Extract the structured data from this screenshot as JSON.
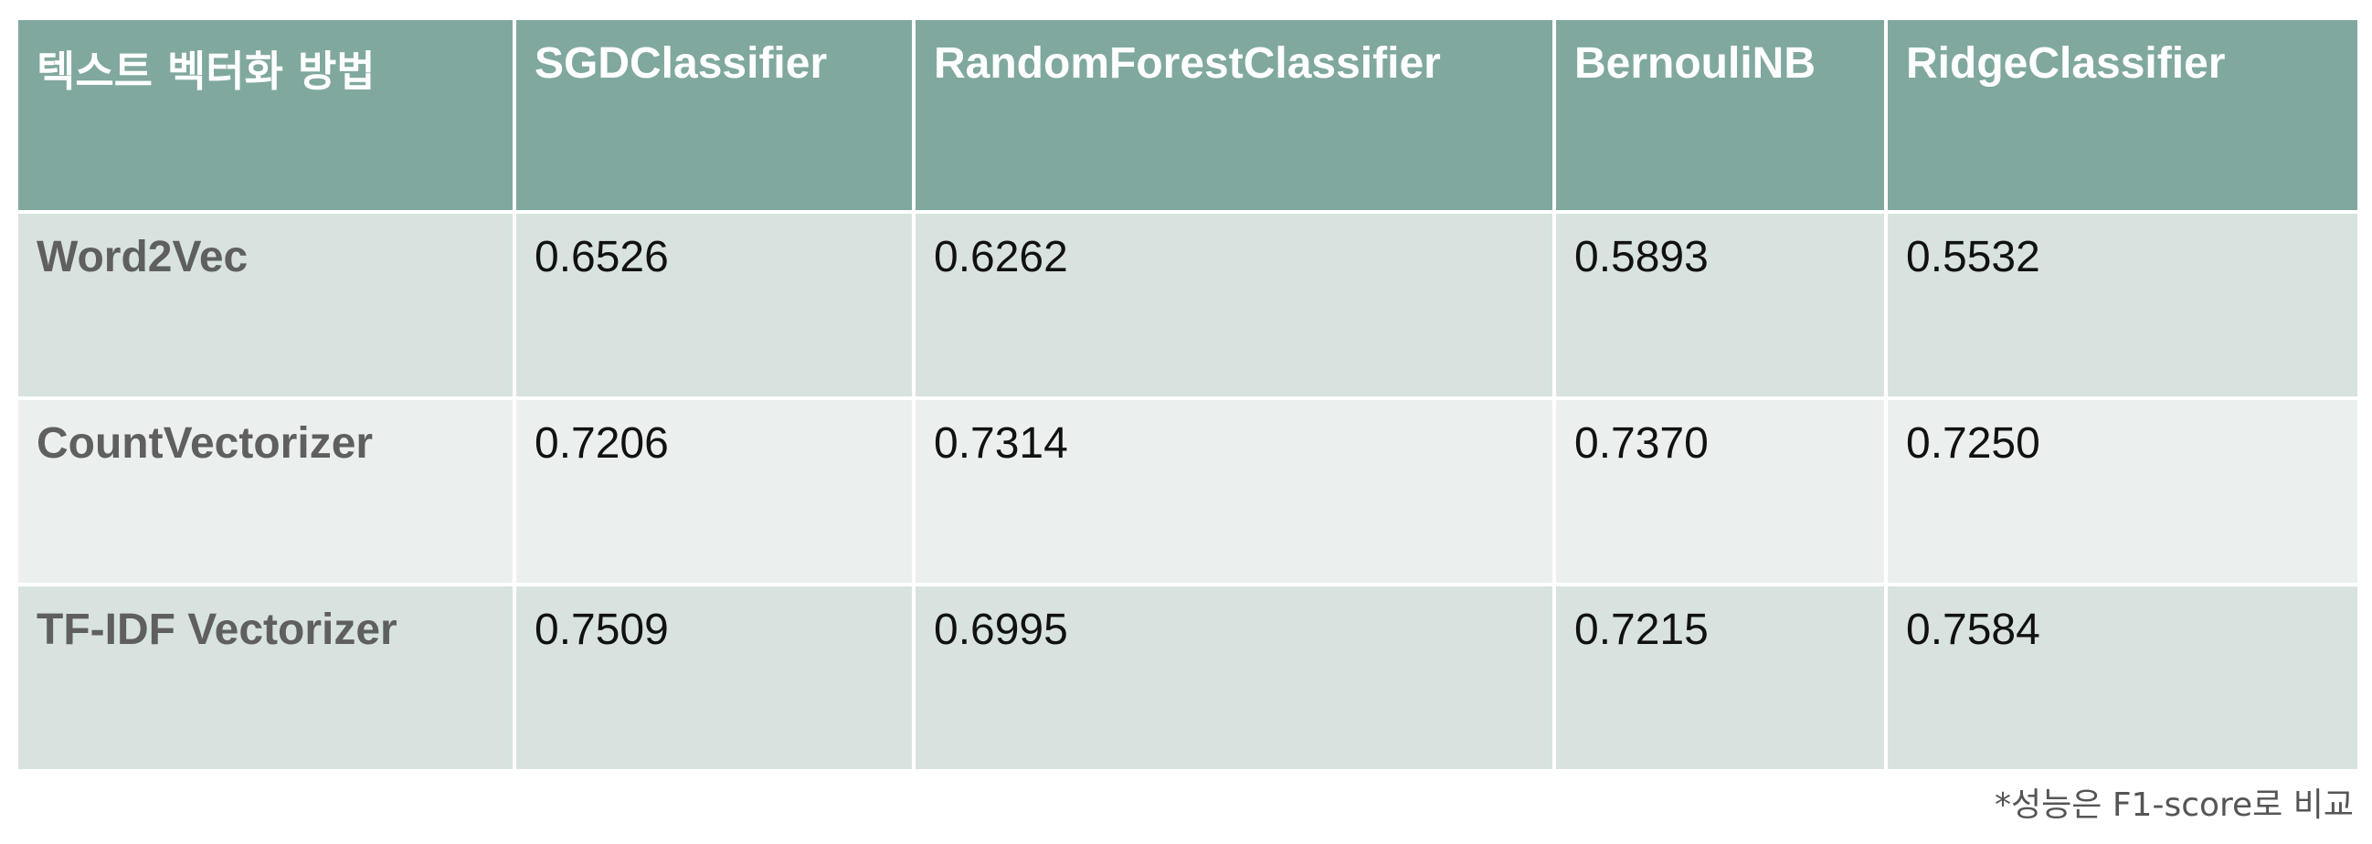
{
  "table": {
    "header": [
      "텍스트 벡터화 방법",
      "SGDClassifier",
      "RandomForestClassifier",
      "BernouliNB",
      "RidgeClassifier"
    ],
    "rows": [
      {
        "label": "Word2Vec",
        "values": [
          "0.6526",
          "0.6262",
          "0.5893",
          "0.5532"
        ]
      },
      {
        "label": "CountVectorizer",
        "values": [
          "0.7206",
          "0.7314",
          "0.7370",
          "0.7250"
        ]
      },
      {
        "label": "TF-IDF Vectorizer",
        "values": [
          "0.7509",
          "0.6995",
          "0.7215",
          "0.7584"
        ]
      }
    ]
  },
  "footnote": "*성능은 F1-score로 비교",
  "colors": {
    "header_bg": "#80a89e",
    "row_odd_bg": "#d8e3df",
    "row_even_bg": "#ebf0ef",
    "label_text": "#5f5f5f"
  }
}
